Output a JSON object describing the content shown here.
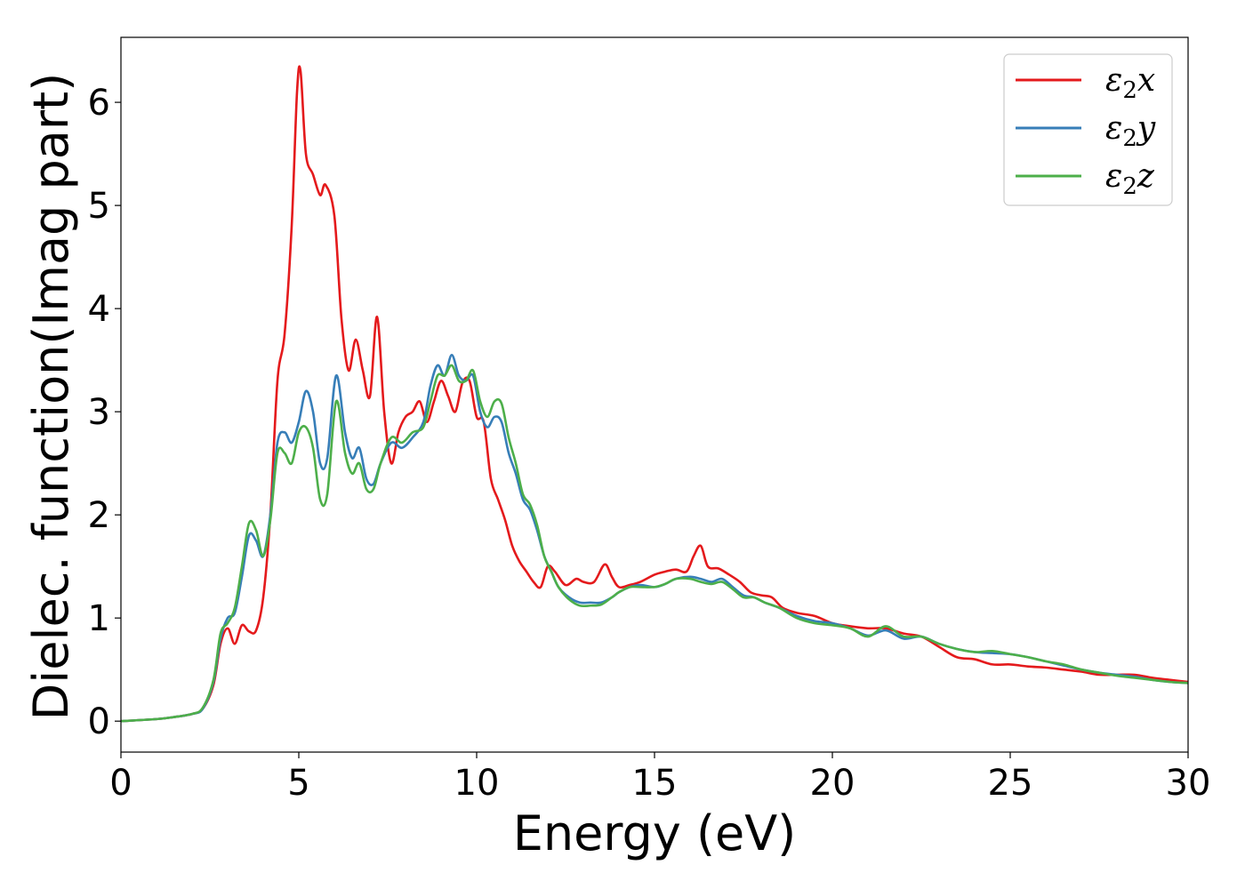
{
  "chart_data": {
    "type": "line",
    "xlabel": "Energy (eV)",
    "ylabel": "Dielec. function(Imag part)",
    "xlim": [
      0,
      30
    ],
    "ylim": [
      -0.3,
      6.63
    ],
    "xticks": [
      0,
      5,
      10,
      15,
      20,
      25,
      30
    ],
    "yticks": [
      0,
      1,
      2,
      3,
      4,
      5,
      6
    ],
    "grid": false,
    "legend_position": "top-right",
    "legend_labels": {
      "x": {
        "base": "ε",
        "sub": "2",
        "suffix": "x"
      },
      "y": {
        "base": "ε",
        "sub": "2",
        "suffix": "y"
      },
      "z": {
        "base": "ε",
        "sub": "2",
        "suffix": "z"
      }
    },
    "series": [
      {
        "name": "ε2x",
        "color": "#e41a1c",
        "x": [
          0,
          1,
          1.5,
          2,
          2.3,
          2.6,
          2.8,
          3.0,
          3.2,
          3.4,
          3.6,
          3.8,
          4.0,
          4.2,
          4.4,
          4.6,
          4.8,
          4.95,
          5.05,
          5.2,
          5.4,
          5.6,
          5.75,
          6.0,
          6.2,
          6.4,
          6.6,
          6.8,
          7.0,
          7.2,
          7.4,
          7.6,
          7.8,
          8.0,
          8.2,
          8.4,
          8.6,
          8.8,
          9.0,
          9.2,
          9.4,
          9.6,
          9.8,
          10.0,
          10.2,
          10.4,
          10.6,
          10.8,
          11.0,
          11.2,
          11.4,
          11.6,
          11.8,
          12.0,
          12.2,
          12.5,
          12.8,
          13.0,
          13.3,
          13.6,
          13.8,
          14.0,
          14.3,
          14.6,
          15.0,
          15.3,
          15.6,
          15.9,
          16.1,
          16.3,
          16.5,
          16.8,
          17.1,
          17.4,
          17.7,
          18.0,
          18.3,
          18.6,
          19.0,
          19.5,
          20.0,
          20.5,
          21.0,
          21.5,
          22.0,
          22.5,
          23.0,
          23.5,
          24.0,
          24.5,
          25.0,
          25.5,
          26.0,
          26.5,
          27.0,
          27.5,
          28.0,
          28.5,
          29.0,
          29.5,
          30.0
        ],
        "values": [
          0,
          0.02,
          0.04,
          0.07,
          0.12,
          0.35,
          0.75,
          0.9,
          0.75,
          0.93,
          0.87,
          0.88,
          1.2,
          2.0,
          3.3,
          3.75,
          4.8,
          6.1,
          6.3,
          5.5,
          5.3,
          5.1,
          5.2,
          4.9,
          3.9,
          3.4,
          3.7,
          3.4,
          3.15,
          3.92,
          3.0,
          2.5,
          2.8,
          2.95,
          3.0,
          3.1,
          2.9,
          3.1,
          3.3,
          3.15,
          3.0,
          3.28,
          3.3,
          2.95,
          2.9,
          2.35,
          2.15,
          1.95,
          1.7,
          1.55,
          1.45,
          1.35,
          1.3,
          1.5,
          1.45,
          1.32,
          1.38,
          1.35,
          1.35,
          1.52,
          1.4,
          1.3,
          1.32,
          1.35,
          1.42,
          1.45,
          1.47,
          1.45,
          1.6,
          1.7,
          1.5,
          1.48,
          1.42,
          1.35,
          1.25,
          1.22,
          1.2,
          1.1,
          1.05,
          1.02,
          0.95,
          0.92,
          0.9,
          0.9,
          0.85,
          0.82,
          0.72,
          0.62,
          0.6,
          0.55,
          0.55,
          0.53,
          0.52,
          0.5,
          0.48,
          0.45,
          0.45,
          0.45,
          0.42,
          0.4,
          0.38
        ]
      },
      {
        "name": "ε2y",
        "color": "#377eb8",
        "x": [
          0,
          1,
          1.5,
          2,
          2.3,
          2.6,
          2.8,
          3.0,
          3.2,
          3.4,
          3.6,
          3.8,
          4.0,
          4.2,
          4.4,
          4.6,
          4.8,
          5.0,
          5.2,
          5.4,
          5.6,
          5.8,
          6.05,
          6.3,
          6.5,
          6.7,
          6.9,
          7.1,
          7.3,
          7.6,
          7.9,
          8.2,
          8.5,
          8.7,
          8.9,
          9.1,
          9.3,
          9.5,
          9.7,
          9.9,
          10.1,
          10.3,
          10.5,
          10.7,
          10.9,
          11.1,
          11.3,
          11.5,
          11.7,
          11.9,
          12.1,
          12.3,
          12.6,
          12.9,
          13.2,
          13.5,
          13.8,
          14.0,
          14.3,
          14.6,
          15.0,
          15.3,
          15.6,
          16.0,
          16.3,
          16.6,
          16.9,
          17.2,
          17.5,
          17.8,
          18.1,
          18.5,
          19.0,
          19.5,
          20.0,
          20.5,
          21.0,
          21.5,
          22.0,
          22.5,
          23.0,
          23.5,
          24.0,
          24.5,
          25.0,
          25.5,
          26.0,
          26.5,
          27.0,
          27.5,
          28.0,
          28.5,
          29.0,
          29.5,
          30.0
        ],
        "values": [
          0,
          0.02,
          0.04,
          0.07,
          0.12,
          0.38,
          0.8,
          1.0,
          1.05,
          1.4,
          1.8,
          1.75,
          1.6,
          2.0,
          2.7,
          2.8,
          2.7,
          2.9,
          3.2,
          3.0,
          2.5,
          2.55,
          3.35,
          2.8,
          2.55,
          2.65,
          2.35,
          2.3,
          2.5,
          2.7,
          2.65,
          2.75,
          2.9,
          3.25,
          3.45,
          3.35,
          3.55,
          3.35,
          3.3,
          3.35,
          3.0,
          2.85,
          2.95,
          2.9,
          2.6,
          2.4,
          2.15,
          2.05,
          1.85,
          1.6,
          1.45,
          1.3,
          1.2,
          1.15,
          1.15,
          1.15,
          1.2,
          1.25,
          1.3,
          1.32,
          1.3,
          1.33,
          1.38,
          1.4,
          1.38,
          1.35,
          1.38,
          1.3,
          1.22,
          1.2,
          1.15,
          1.1,
          1.02,
          0.97,
          0.95,
          0.9,
          0.83,
          0.88,
          0.8,
          0.82,
          0.75,
          0.7,
          0.67,
          0.66,
          0.65,
          0.62,
          0.58,
          0.54,
          0.5,
          0.47,
          0.45,
          0.43,
          0.4,
          0.38,
          0.37
        ]
      },
      {
        "name": "ε2z",
        "color": "#4daf4a",
        "x": [
          0,
          1,
          1.5,
          2,
          2.3,
          2.6,
          2.8,
          3.0,
          3.2,
          3.4,
          3.6,
          3.8,
          4.0,
          4.2,
          4.4,
          4.6,
          4.8,
          5.0,
          5.2,
          5.4,
          5.6,
          5.8,
          6.05,
          6.3,
          6.5,
          6.7,
          6.9,
          7.1,
          7.3,
          7.6,
          7.9,
          8.2,
          8.5,
          8.7,
          8.9,
          9.1,
          9.3,
          9.5,
          9.7,
          9.9,
          10.1,
          10.3,
          10.5,
          10.7,
          10.9,
          11.1,
          11.3,
          11.5,
          11.7,
          11.9,
          12.1,
          12.3,
          12.6,
          12.9,
          13.2,
          13.5,
          13.8,
          14.0,
          14.3,
          14.6,
          15.0,
          15.3,
          15.6,
          16.0,
          16.3,
          16.6,
          16.9,
          17.2,
          17.5,
          17.8,
          18.1,
          18.5,
          19.0,
          19.5,
          20.0,
          20.5,
          21.0,
          21.5,
          22.0,
          22.5,
          23.0,
          23.5,
          24.0,
          24.5,
          25.0,
          25.5,
          26.0,
          26.5,
          27.0,
          27.5,
          28.0,
          28.5,
          29.0,
          29.5,
          30.0
        ],
        "values": [
          0,
          0.02,
          0.04,
          0.07,
          0.13,
          0.4,
          0.85,
          0.95,
          1.1,
          1.5,
          1.92,
          1.85,
          1.6,
          1.95,
          2.6,
          2.6,
          2.5,
          2.8,
          2.85,
          2.65,
          2.15,
          2.2,
          3.1,
          2.6,
          2.4,
          2.5,
          2.25,
          2.25,
          2.5,
          2.75,
          2.7,
          2.8,
          2.85,
          3.1,
          3.35,
          3.35,
          3.45,
          3.3,
          3.3,
          3.4,
          3.1,
          2.95,
          3.1,
          3.08,
          2.75,
          2.5,
          2.2,
          2.1,
          1.9,
          1.6,
          1.45,
          1.3,
          1.18,
          1.12,
          1.12,
          1.13,
          1.2,
          1.25,
          1.3,
          1.3,
          1.3,
          1.33,
          1.38,
          1.38,
          1.35,
          1.33,
          1.35,
          1.28,
          1.2,
          1.2,
          1.15,
          1.1,
          1.0,
          0.95,
          0.93,
          0.9,
          0.82,
          0.92,
          0.82,
          0.82,
          0.75,
          0.7,
          0.67,
          0.68,
          0.65,
          0.62,
          0.58,
          0.55,
          0.5,
          0.47,
          0.44,
          0.42,
          0.4,
          0.38,
          0.37
        ]
      }
    ]
  }
}
